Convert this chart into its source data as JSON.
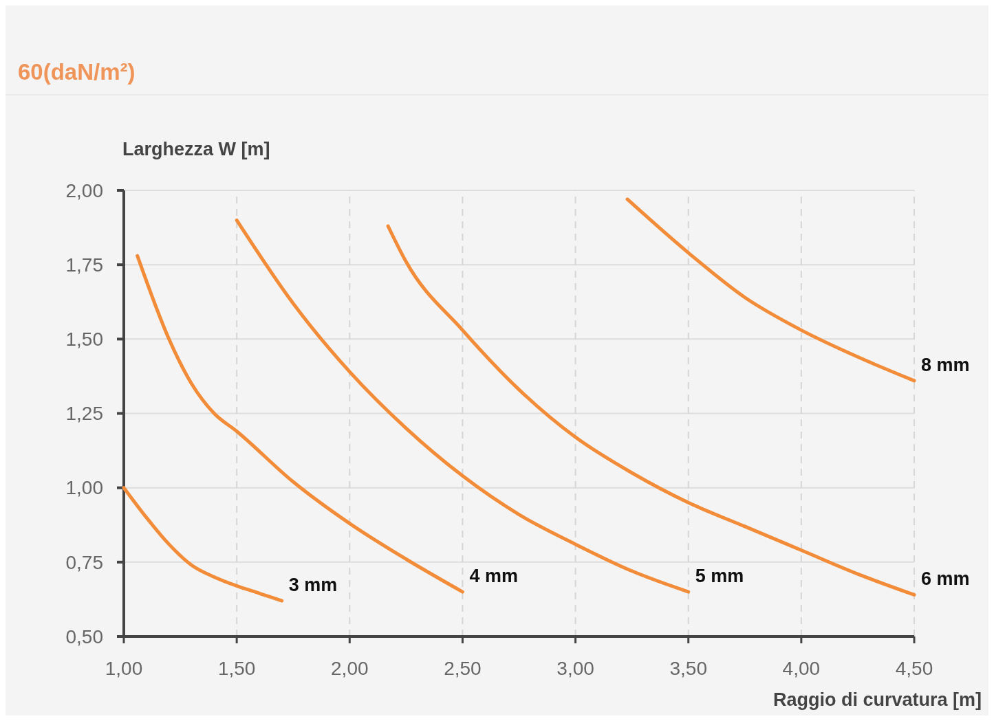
{
  "chart_data": {
    "type": "line",
    "title": "60(daN/m²)",
    "xlabel": "Raggio di curvatura [m]",
    "ylabel": "Larghezza W [m]",
    "xlim": [
      1,
      4.5
    ],
    "xticks": [
      {
        "value": 1,
        "label": "1,00"
      },
      {
        "value": 1.5,
        "label": "1,50"
      },
      {
        "value": 2,
        "label": "2,00"
      },
      {
        "value": 2.5,
        "label": "2,50"
      },
      {
        "value": 3,
        "label": "3,00"
      },
      {
        "value": 3.5,
        "label": "3,50"
      },
      {
        "value": 4,
        "label": "4,00"
      },
      {
        "value": 4.5,
        "label": "4,50"
      }
    ],
    "ylim": [
      0.5,
      2
    ],
    "yticks": [
      {
        "value": 0.5,
        "label": "0,50"
      },
      {
        "value": 0.75,
        "label": "0,75"
      },
      {
        "value": 1,
        "label": "1,00"
      },
      {
        "value": 1.25,
        "label": "1,25"
      },
      {
        "value": 1.5,
        "label": "1,50"
      },
      {
        "value": 1.75,
        "label": "1,75"
      },
      {
        "value": 2,
        "label": "2,00"
      }
    ],
    "grid": true,
    "marker": "none",
    "line_style": "solid",
    "series": [
      {
        "name": "3 mm",
        "color": "#f28c38",
        "x": [
          1,
          1.1,
          1.2,
          1.3,
          1.4,
          1.5,
          1.6,
          1.7
        ],
        "values": [
          1,
          0.9,
          0.81,
          0.74,
          0.7,
          0.67,
          0.645,
          0.62
        ]
      },
      {
        "name": "4 mm",
        "color": "#f28c38",
        "x": [
          1.06,
          1.2,
          1.3,
          1.4,
          1.5,
          1.75,
          2,
          2.25,
          2.5
        ],
        "values": [
          1.78,
          1.5,
          1.35,
          1.25,
          1.19,
          1.02,
          0.88,
          0.76,
          0.65
        ]
      },
      {
        "name": "5 mm",
        "color": "#f28c38",
        "x": [
          1.5,
          1.75,
          2,
          2.25,
          2.5,
          2.75,
          3,
          3.25,
          3.5
        ],
        "values": [
          1.9,
          1.62,
          1.39,
          1.2,
          1.04,
          0.91,
          0.81,
          0.72,
          0.65
        ]
      },
      {
        "name": "6 mm",
        "color": "#f28c38",
        "x": [
          2.17,
          2.25,
          2.5,
          2.75,
          3,
          3.25,
          3.5,
          3.75,
          4,
          4.25,
          4.5
        ],
        "values": [
          1.88,
          1.76,
          1.53,
          1.33,
          1.17,
          1.05,
          0.95,
          0.87,
          0.79,
          0.71,
          0.64
        ]
      },
      {
        "name": "8 mm",
        "color": "#f28c38",
        "x": [
          3.23,
          3.5,
          3.75,
          4,
          4.25,
          4.5
        ],
        "values": [
          1.97,
          1.79,
          1.64,
          1.53,
          1.44,
          1.36
        ]
      }
    ]
  }
}
